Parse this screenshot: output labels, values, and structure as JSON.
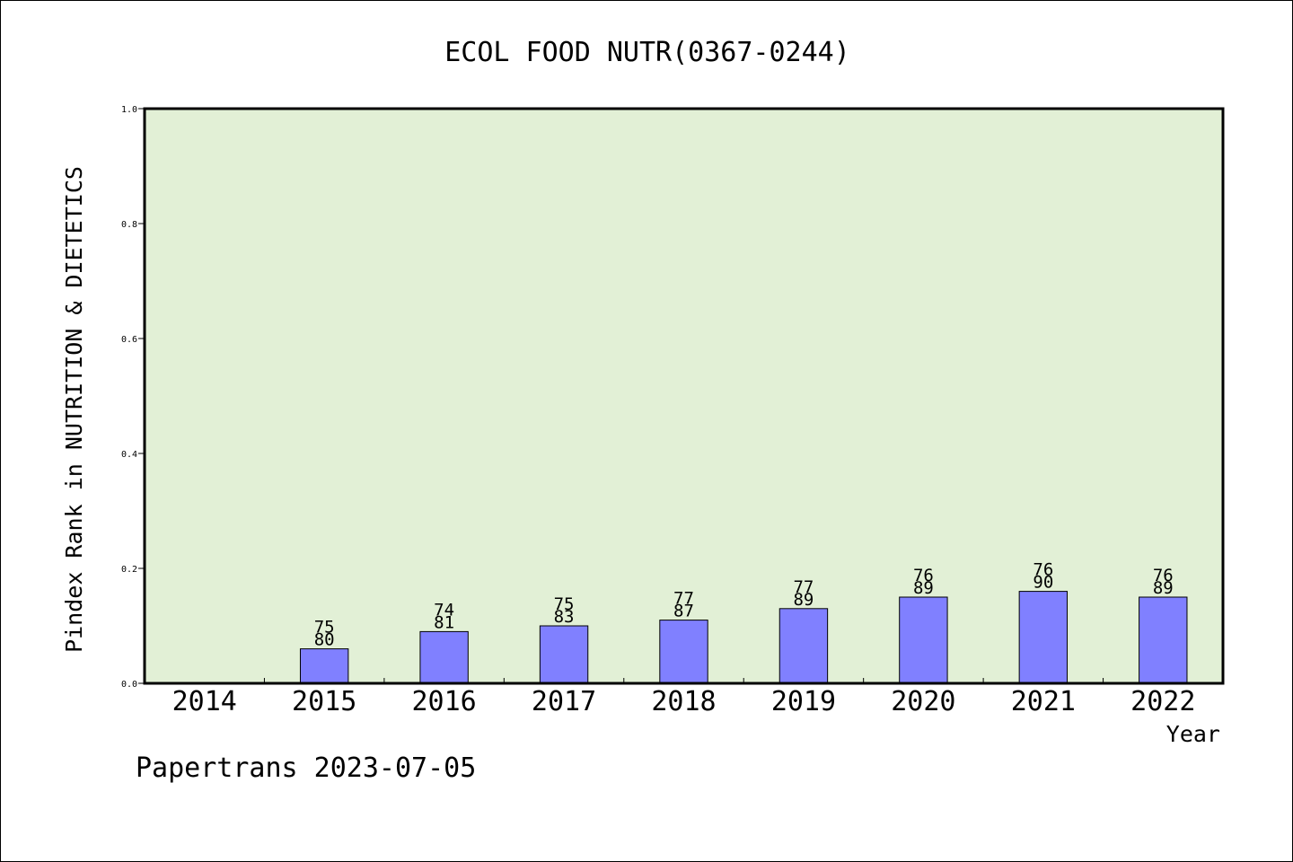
{
  "chart_data": {
    "type": "bar",
    "title": "ECOL FOOD NUTR(0367-0244)",
    "xlabel": "Year",
    "ylabel": "Pindex Rank in NUTRITION & DIETETICS",
    "footer": "Papertrans 2023-07-05",
    "categories": [
      "2014",
      "2015",
      "2016",
      "2017",
      "2018",
      "2019",
      "2020",
      "2021",
      "2022"
    ],
    "values": [
      null,
      0.06,
      0.09,
      0.1,
      0.11,
      0.13,
      0.15,
      0.16,
      0.15
    ],
    "labels_top": [
      null,
      "75",
      "74",
      "75",
      "77",
      "77",
      "76",
      "76",
      "76"
    ],
    "labels_bottom": [
      null,
      "80",
      "81",
      "83",
      "87",
      "89",
      "89",
      "90",
      "89"
    ],
    "ylim": [
      0,
      1.0
    ],
    "yticks": [
      "0.0",
      "0.2",
      "0.4",
      "0.6",
      "0.8",
      "1.0"
    ],
    "grid": false,
    "colors": {
      "plot_background": "#e2f0d6",
      "bar": "#8080ff"
    }
  }
}
